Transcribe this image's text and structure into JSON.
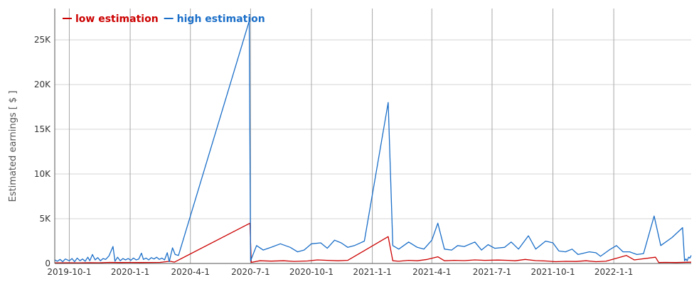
{
  "chart_data": {
    "type": "line",
    "title": "",
    "xlabel": "",
    "ylabel": "Estimated earnings [ $ ]",
    "ylim": [
      0,
      28500
    ],
    "xlim": [
      "2019-09-09",
      "2022-04-28"
    ],
    "grid": true,
    "legend_position": "top-left",
    "x_ticks": [
      "2019-10-1",
      "2020-1-1",
      "2020-4-1",
      "2020-7-1",
      "2020-10-1",
      "2021-1-1",
      "2021-4-1",
      "2021-7-1",
      "2021-10-1",
      "2022-1-1"
    ],
    "y_ticks": [
      {
        "value": 0,
        "label": "0"
      },
      {
        "value": 5000,
        "label": "5K"
      },
      {
        "value": 10000,
        "label": "10K"
      },
      {
        "value": 15000,
        "label": "15K"
      },
      {
        "value": 20000,
        "label": "20K"
      },
      {
        "value": 25000,
        "label": "25K"
      }
    ],
    "series": [
      {
        "name": "low estimation",
        "color": "#cc0000",
        "points": [
          [
            "2019-09-09",
            60
          ],
          [
            "2019-10-01",
            80
          ],
          [
            "2019-10-15",
            70
          ],
          [
            "2019-11-01",
            90
          ],
          [
            "2019-11-15",
            80
          ],
          [
            "2019-12-01",
            120
          ],
          [
            "2019-12-15",
            100
          ],
          [
            "2020-01-01",
            110
          ],
          [
            "2020-01-15",
            100
          ],
          [
            "2020-02-01",
            110
          ],
          [
            "2020-02-15",
            120
          ],
          [
            "2020-03-01",
            250
          ],
          [
            "2020-03-08",
            150
          ],
          [
            "2020-06-30",
            4500
          ],
          [
            "2020-07-02",
            120
          ],
          [
            "2020-07-15",
            300
          ],
          [
            "2020-08-01",
            260
          ],
          [
            "2020-08-20",
            300
          ],
          [
            "2020-09-05",
            230
          ],
          [
            "2020-09-25",
            280
          ],
          [
            "2020-10-10",
            400
          ],
          [
            "2020-10-25",
            350
          ],
          [
            "2020-11-10",
            300
          ],
          [
            "2020-11-25",
            350
          ],
          [
            "2021-01-25",
            3000
          ],
          [
            "2021-02-01",
            300
          ],
          [
            "2021-02-10",
            250
          ],
          [
            "2021-02-25",
            350
          ],
          [
            "2021-03-10",
            300
          ],
          [
            "2021-03-25",
            450
          ],
          [
            "2021-04-10",
            750
          ],
          [
            "2021-04-20",
            300
          ],
          [
            "2021-05-05",
            350
          ],
          [
            "2021-05-20",
            320
          ],
          [
            "2021-06-05",
            400
          ],
          [
            "2021-06-20",
            350
          ],
          [
            "2021-07-10",
            380
          ],
          [
            "2021-07-25",
            350
          ],
          [
            "2021-08-05",
            300
          ],
          [
            "2021-08-20",
            450
          ],
          [
            "2021-09-05",
            320
          ],
          [
            "2021-09-20",
            280
          ],
          [
            "2021-10-05",
            200
          ],
          [
            "2021-10-20",
            240
          ],
          [
            "2021-11-05",
            220
          ],
          [
            "2021-11-20",
            300
          ],
          [
            "2021-12-05",
            200
          ],
          [
            "2021-12-20",
            250
          ],
          [
            "2022-01-20",
            900
          ],
          [
            "2022-02-01",
            400
          ],
          [
            "2022-03-05",
            700
          ],
          [
            "2022-03-10",
            100
          ],
          [
            "2022-03-20",
            120
          ],
          [
            "2022-04-05",
            100
          ],
          [
            "2022-04-28",
            140
          ]
        ]
      },
      {
        "name": "high estimation",
        "color": "#1a6ec8",
        "points": [
          [
            "2019-09-09",
            400
          ],
          [
            "2019-09-13",
            250
          ],
          [
            "2019-09-17",
            450
          ],
          [
            "2019-09-21",
            200
          ],
          [
            "2019-09-25",
            500
          ],
          [
            "2019-10-01",
            300
          ],
          [
            "2019-10-05",
            550
          ],
          [
            "2019-10-09",
            200
          ],
          [
            "2019-10-13",
            600
          ],
          [
            "2019-10-17",
            300
          ],
          [
            "2019-10-21",
            500
          ],
          [
            "2019-10-25",
            250
          ],
          [
            "2019-10-29",
            700
          ],
          [
            "2019-11-01",
            300
          ],
          [
            "2019-11-05",
            1000
          ],
          [
            "2019-11-09",
            400
          ],
          [
            "2019-11-13",
            650
          ],
          [
            "2019-11-17",
            300
          ],
          [
            "2019-11-21",
            550
          ],
          [
            "2019-11-25",
            450
          ],
          [
            "2019-11-30",
            850
          ],
          [
            "2019-12-06",
            1900
          ],
          [
            "2019-12-09",
            250
          ],
          [
            "2019-12-13",
            700
          ],
          [
            "2019-12-17",
            300
          ],
          [
            "2019-12-21",
            550
          ],
          [
            "2019-12-25",
            400
          ],
          [
            "2019-12-29",
            550
          ],
          [
            "2020-01-02",
            350
          ],
          [
            "2020-01-06",
            600
          ],
          [
            "2020-01-10",
            400
          ],
          [
            "2020-01-14",
            500
          ],
          [
            "2020-01-18",
            1150
          ],
          [
            "2020-01-21",
            450
          ],
          [
            "2020-01-25",
            600
          ],
          [
            "2020-01-29",
            400
          ],
          [
            "2020-02-02",
            650
          ],
          [
            "2020-02-06",
            500
          ],
          [
            "2020-02-10",
            700
          ],
          [
            "2020-02-14",
            450
          ],
          [
            "2020-02-18",
            600
          ],
          [
            "2020-02-22",
            400
          ],
          [
            "2020-02-26",
            1200
          ],
          [
            "2020-02-29",
            200
          ],
          [
            "2020-03-05",
            1750
          ],
          [
            "2020-03-09",
            1000
          ],
          [
            "2020-03-14",
            900
          ],
          [
            "2020-06-29",
            27100
          ],
          [
            "2020-07-01",
            300
          ],
          [
            "2020-07-10",
            2000
          ],
          [
            "2020-07-20",
            1500
          ],
          [
            "2020-08-01",
            1800
          ],
          [
            "2020-08-15",
            2200
          ],
          [
            "2020-08-30",
            1800
          ],
          [
            "2020-09-10",
            1300
          ],
          [
            "2020-09-20",
            1500
          ],
          [
            "2020-10-01",
            2200
          ],
          [
            "2020-10-15",
            2300
          ],
          [
            "2020-10-25",
            1700
          ],
          [
            "2020-11-05",
            2600
          ],
          [
            "2020-11-15",
            2300
          ],
          [
            "2020-11-25",
            1800
          ],
          [
            "2020-12-05",
            2000
          ],
          [
            "2020-12-20",
            2500
          ],
          [
            "2021-01-25",
            18000
          ],
          [
            "2021-02-01",
            2000
          ],
          [
            "2021-02-10",
            1600
          ],
          [
            "2021-02-25",
            2400
          ],
          [
            "2021-03-10",
            1800
          ],
          [
            "2021-03-20",
            1600
          ],
          [
            "2021-04-01",
            2600
          ],
          [
            "2021-04-10",
            4500
          ],
          [
            "2021-04-20",
            1600
          ],
          [
            "2021-05-01",
            1500
          ],
          [
            "2021-05-10",
            2000
          ],
          [
            "2021-05-20",
            1900
          ],
          [
            "2021-06-05",
            2400
          ],
          [
            "2021-06-15",
            1500
          ],
          [
            "2021-06-25",
            2100
          ],
          [
            "2021-07-05",
            1700
          ],
          [
            "2021-07-20",
            1800
          ],
          [
            "2021-07-30",
            2400
          ],
          [
            "2021-08-10",
            1600
          ],
          [
            "2021-08-25",
            3100
          ],
          [
            "2021-09-05",
            1600
          ],
          [
            "2021-09-20",
            2500
          ],
          [
            "2021-10-01",
            2300
          ],
          [
            "2021-10-10",
            1400
          ],
          [
            "2021-10-20",
            1300
          ],
          [
            "2021-10-30",
            1600
          ],
          [
            "2021-11-08",
            1000
          ],
          [
            "2021-11-25",
            1300
          ],
          [
            "2021-12-05",
            1200
          ],
          [
            "2021-12-12",
            800
          ],
          [
            "2021-12-25",
            1500
          ],
          [
            "2022-01-05",
            2000
          ],
          [
            "2022-01-15",
            1300
          ],
          [
            "2022-01-25",
            1300
          ],
          [
            "2022-02-05",
            1000
          ],
          [
            "2022-02-15",
            1100
          ],
          [
            "2022-03-03",
            5300
          ],
          [
            "2022-03-13",
            2000
          ],
          [
            "2022-03-30",
            2900
          ],
          [
            "2022-04-15",
            4000
          ],
          [
            "2022-04-18",
            300
          ],
          [
            "2022-04-20",
            500
          ],
          [
            "2022-04-22",
            300
          ],
          [
            "2022-04-24",
            700
          ],
          [
            "2022-04-26",
            600
          ],
          [
            "2022-04-28",
            900
          ]
        ]
      }
    ]
  }
}
